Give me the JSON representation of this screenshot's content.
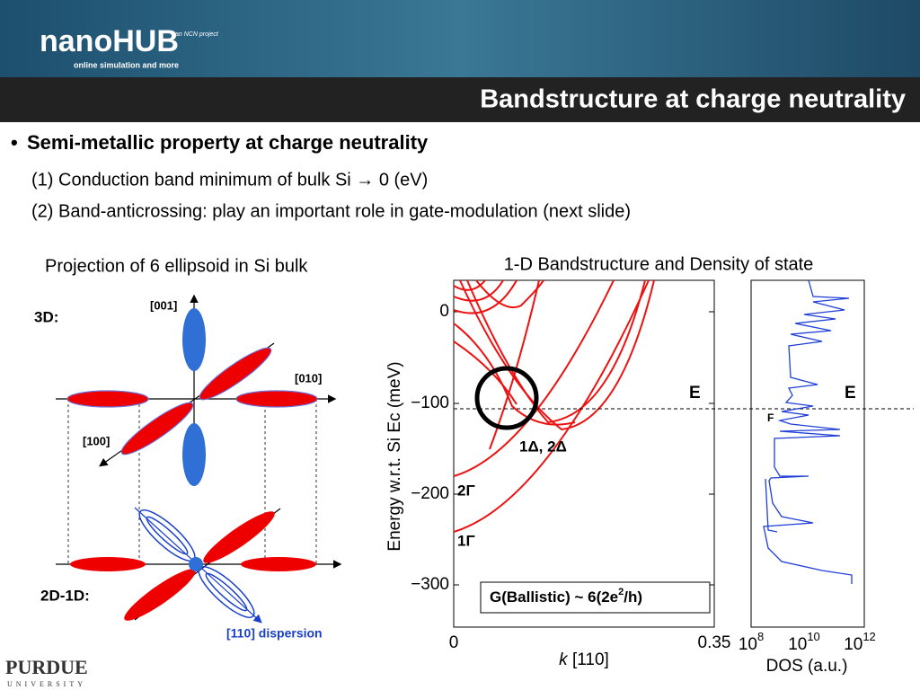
{
  "header": {
    "logo": "nanoHUB",
    "tagline": "online simulation and more",
    "project": "an NCN project",
    "title": "Bandstructure at charge neutrality"
  },
  "bullets": {
    "main": "Semi-metallic property at charge neutrality",
    "items": [
      "(1) Conduction band minimum of bulk Si → 0 (eV)",
      "(2) Band-anticrossing: play an important role in gate-modulation (next slide)"
    ]
  },
  "left_figure": {
    "caption": "Projection of 6 ellipsoid in Si bulk",
    "labels": {
      "three_d": "3D:",
      "two_d_one_d": "2D-1D:",
      "z_axis": "[001]",
      "y_axis": "[010]",
      "x_axis": "[100]",
      "dispersion": "[110] dispersion"
    }
  },
  "right_figure": {
    "title": "1-D Bandstructure and Density of state",
    "band": {
      "ylabel": "Energy w.r.t. Si Ec (meV)",
      "yticks": [
        "0",
        "−100",
        "−200",
        "−300"
      ],
      "xticks": [
        "0",
        "0.35"
      ],
      "xlabel_var": "k",
      "xlabel": "[110]",
      "annotations": [
        "1Δ, 2Δ",
        "2Γ",
        "1Γ"
      ],
      "fermi_e": "E",
      "conductance": [
        "G(Ballistic) ~ 6(2e",
        "2",
        "/h)"
      ]
    },
    "dos": {
      "fermi_e": "E",
      "fermi_f": "F",
      "xticks": [
        {
          "base": "10",
          "exp": "8"
        },
        {
          "base": "10",
          "exp": "10"
        },
        {
          "base": "10",
          "exp": "12"
        }
      ],
      "xlabel": "DOS (a.u.)"
    }
  },
  "footer": {
    "university": "PURDUE",
    "subtitle": "UNIVERSITY"
  }
}
